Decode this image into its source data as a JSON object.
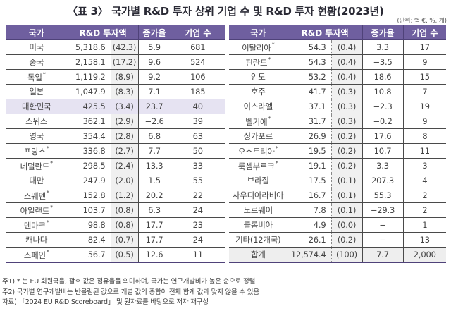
{
  "title": "〈표 3〉 국가별 R&D 투자 상위 기업 수 및 R&D 투자 현황(2023년)",
  "unit": "(단위: 억 €, %, 개)",
  "headers": {
    "country": "국가",
    "rd_investment": "R&D 투자액",
    "growth": "증가율",
    "companies": "기업 수"
  },
  "left_rows": [
    {
      "country": "미국",
      "eu": false,
      "amount": "5,318.6",
      "share": "(42.3)",
      "growth": "5.9",
      "companies": "681"
    },
    {
      "country": "중국",
      "eu": false,
      "amount": "2,158.1",
      "share": "(17.2)",
      "growth": "9.6",
      "companies": "524"
    },
    {
      "country": "독일",
      "eu": true,
      "amount": "1,119.2",
      "share": "(8.9)",
      "growth": "9.2",
      "companies": "106"
    },
    {
      "country": "일본",
      "eu": false,
      "amount": "1,047.9",
      "share": "(8.3)",
      "growth": "7.1",
      "companies": "185"
    },
    {
      "country": "대한민국",
      "eu": false,
      "amount": "425.5",
      "share": "(3.4)",
      "growth": "23.7",
      "companies": "40",
      "highlight": true
    },
    {
      "country": "스위스",
      "eu": false,
      "amount": "362.1",
      "share": "(2.9)",
      "growth": "−2.6",
      "companies": "39"
    },
    {
      "country": "영국",
      "eu": false,
      "amount": "354.4",
      "share": "(2.8)",
      "growth": "6.8",
      "companies": "63"
    },
    {
      "country": "프랑스",
      "eu": true,
      "amount": "336.8",
      "share": "(2.7)",
      "growth": "7.7",
      "companies": "50"
    },
    {
      "country": "네덜란드",
      "eu": true,
      "amount": "298.5",
      "share": "(2.4)",
      "growth": "13.3",
      "companies": "33"
    },
    {
      "country": "대만",
      "eu": false,
      "amount": "247.9",
      "share": "(2.0)",
      "growth": "1.5",
      "companies": "55"
    },
    {
      "country": "스웨덴",
      "eu": true,
      "amount": "152.8",
      "share": "(1.2)",
      "growth": "20.2",
      "companies": "22"
    },
    {
      "country": "아일랜드",
      "eu": true,
      "amount": "103.7",
      "share": "(0.8)",
      "growth": "6.3",
      "companies": "24"
    },
    {
      "country": "덴마크",
      "eu": true,
      "amount": "98.8",
      "share": "(0.8)",
      "growth": "17.7",
      "companies": "23"
    },
    {
      "country": "캐나다",
      "eu": false,
      "amount": "82.4",
      "share": "(0.7)",
      "growth": "17.7",
      "companies": "24"
    },
    {
      "country": "스페인",
      "eu": true,
      "amount": "56.7",
      "share": "(0.5)",
      "growth": "12.6",
      "companies": "11"
    }
  ],
  "right_rows": [
    {
      "country": "이탈리아",
      "eu": true,
      "amount": "54.3",
      "share": "(0.4)",
      "growth": "3.3",
      "companies": "17"
    },
    {
      "country": "핀란드",
      "eu": true,
      "amount": "54.3",
      "share": "(0.4)",
      "growth": "−3.5",
      "companies": "9"
    },
    {
      "country": "인도",
      "eu": false,
      "amount": "53.2",
      "share": "(0.4)",
      "growth": "18.6",
      "companies": "15"
    },
    {
      "country": "호주",
      "eu": false,
      "amount": "41.7",
      "share": "(0.3)",
      "growth": "10.8",
      "companies": "7"
    },
    {
      "country": "이스라엘",
      "eu": false,
      "amount": "37.1",
      "share": "(0.3)",
      "growth": "−2.3",
      "companies": "19"
    },
    {
      "country": "벨기에",
      "eu": true,
      "amount": "31.7",
      "share": "(0.3)",
      "growth": "−0.2",
      "companies": "9"
    },
    {
      "country": "싱가포르",
      "eu": false,
      "amount": "26.9",
      "share": "(0.2)",
      "growth": "17.6",
      "companies": "8"
    },
    {
      "country": "오스트리아",
      "eu": true,
      "amount": "19.5",
      "share": "(0.2)",
      "growth": "10.7",
      "companies": "11"
    },
    {
      "country": "룩셈부르크",
      "eu": true,
      "amount": "19.1",
      "share": "(0.2)",
      "growth": "3.3",
      "companies": "3"
    },
    {
      "country": "브라질",
      "eu": false,
      "amount": "17.5",
      "share": "(0.1)",
      "growth": "207.3",
      "companies": "4"
    },
    {
      "country": "사우디아라비아",
      "eu": false,
      "amount": "16.7",
      "share": "(0.1)",
      "growth": "55.3",
      "companies": "2"
    },
    {
      "country": "노르웨이",
      "eu": false,
      "amount": "7.8",
      "share": "(0.1)",
      "growth": "−29.3",
      "companies": "2"
    },
    {
      "country": "콜롬비아",
      "eu": false,
      "amount": "4.9",
      "share": "(0.0)",
      "growth": "−",
      "companies": "1"
    },
    {
      "country": "기타(12개국)",
      "eu": false,
      "amount": "26.1",
      "share": "(0.2)",
      "growth": "−",
      "companies": "13"
    }
  ],
  "total": {
    "country": "합계",
    "amount": "12,574.4",
    "share": "(100)",
    "growth": "7.7",
    "companies": "2,000"
  },
  "eu_marker": "*",
  "notes": [
    "주1) * 는 EU 회원국을, 괄호 값은 점유율을 의미하며, 국가는 연구개발비가 높은 순으로 정렬",
    "주2) 국가별 연구개발비는 반올림된 값으로 개별 값의 총합이 전체 합계 값과 맞지 않을 수 있음",
    "자료) 「2024 EU R&D Scoreboard」 및 원자료를 바탕으로 저자 재구성"
  ],
  "colors": {
    "header_bg": "#6f5f9f",
    "highlight_row_bg": "#e6e3f2",
    "share_col_bg": "#f0f0f0",
    "total_row_bg": "#eeeeee"
  }
}
